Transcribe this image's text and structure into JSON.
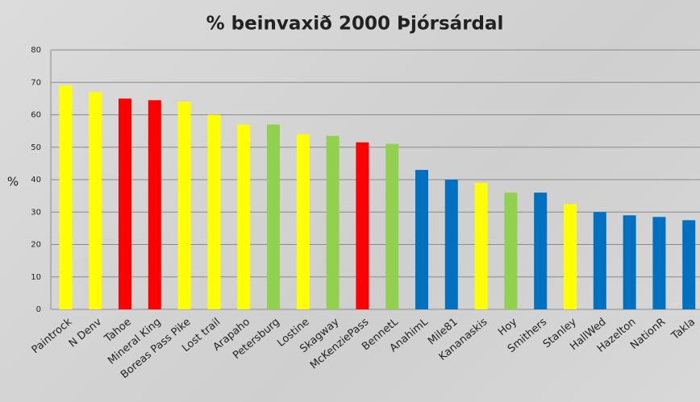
{
  "chart_data": {
    "type": "bar",
    "title": "% beinvaxið 2000 Þjórsárdal",
    "y_label": "%",
    "categories": [
      "Paintrock",
      "N Denv",
      "Tahoe",
      "Mineral King",
      "Boreas Pass Pike",
      "Lost trail",
      "Arapaho",
      "Petersburg",
      "Lostine",
      "Skagway",
      "McKenziePass",
      "BennetL",
      "AnahimL",
      "Mile81",
      "Kananaskis",
      "Hoy",
      "Smithers",
      "Stanley",
      "HallWed",
      "Hazelton",
      "NationR",
      "Takla"
    ],
    "values": [
      69,
      67,
      65,
      64.5,
      64,
      60,
      57,
      57,
      54,
      53.5,
      51.5,
      51,
      43,
      40,
      39,
      36,
      36,
      32.5,
      30,
      29,
      28.5,
      27.5
    ],
    "colors": [
      "#ffff00",
      "#ffff00",
      "#ff0000",
      "#ff0000",
      "#ffff00",
      "#ffff00",
      "#ffff00",
      "#92d050",
      "#ffff00",
      "#92d050",
      "#ff0000",
      "#92d050",
      "#0070c0",
      "#0070c0",
      "#ffff00",
      "#92d050",
      "#0070c0",
      "#ffff00",
      "#0070c0",
      "#0070c0",
      "#0070c0",
      "#0070c0"
    ],
    "ylim": [
      0,
      80
    ],
    "yticks": [
      0,
      10,
      20,
      30,
      40,
      50,
      60,
      70,
      80
    ],
    "grid": true
  }
}
